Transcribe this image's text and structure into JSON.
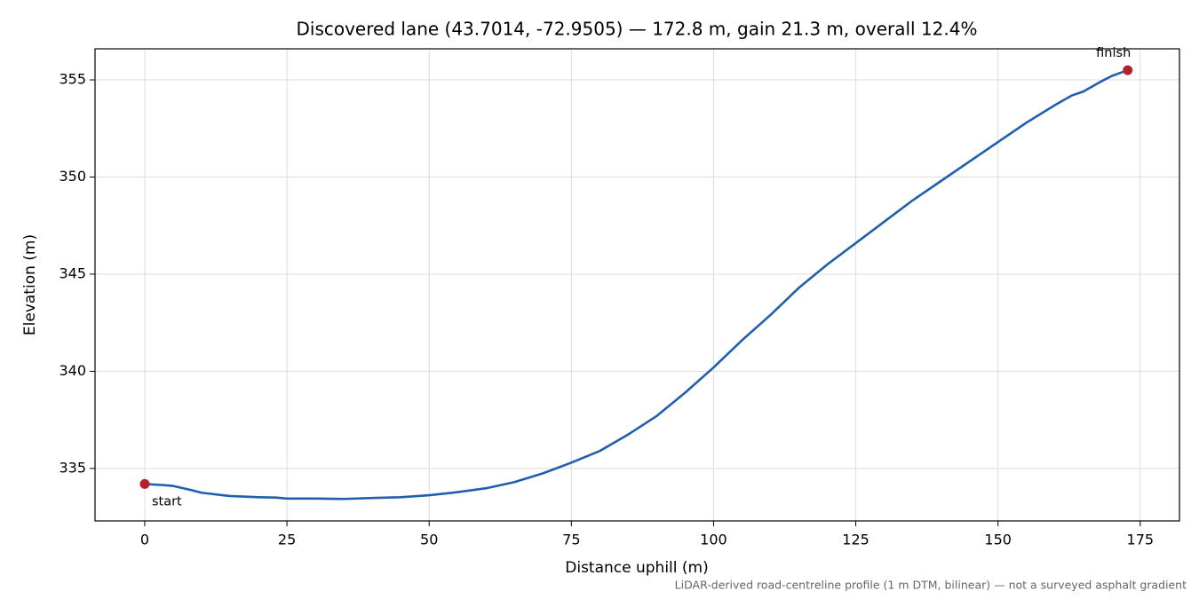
{
  "chart_data": {
    "type": "line",
    "title": "Discovered lane (43.7014, -72.9505) — 172.8 m, gain 21.3 m, overall 12.4%",
    "x_label": "Distance uphill (m)",
    "y_label": "Elevation (m)",
    "footnote": "LiDAR-derived road-centreline profile (1 m DTM, bilinear) — not a surveyed asphalt gradient",
    "x": [
      0,
      3,
      5,
      8,
      10,
      15,
      20,
      23,
      25,
      30,
      35,
      40,
      45,
      50,
      55,
      60,
      65,
      70,
      75,
      80,
      85,
      90,
      95,
      100,
      105,
      110,
      115,
      120,
      125,
      130,
      135,
      140,
      145,
      150,
      155,
      160,
      163,
      165,
      168,
      170,
      172.8
    ],
    "series": [
      {
        "name": "Elevation",
        "color": "#1f5fad",
        "values": [
          334.2,
          334.15,
          334.1,
          333.9,
          333.75,
          333.58,
          333.52,
          333.5,
          333.45,
          333.45,
          333.43,
          333.48,
          333.52,
          333.62,
          333.78,
          333.98,
          334.3,
          334.75,
          335.3,
          335.9,
          336.75,
          337.7,
          338.9,
          340.2,
          341.6,
          342.9,
          344.3,
          345.5,
          346.6,
          347.7,
          348.8,
          349.8,
          350.8,
          351.8,
          352.8,
          353.7,
          354.2,
          354.4,
          354.9,
          355.2,
          355.5
        ]
      }
    ],
    "markers": [
      {
        "label": "start",
        "x": 0,
        "y": 334.2,
        "color": "#b5202e"
      },
      {
        "label": "finish",
        "x": 172.8,
        "y": 355.5,
        "color": "#b5202e"
      }
    ],
    "xlim": [
      -8.74,
      181.9
    ],
    "ylim": [
      332.3,
      356.6
    ],
    "xticks": [
      0,
      25,
      50,
      75,
      100,
      125,
      150,
      175
    ],
    "yticks": [
      335,
      340,
      345,
      350,
      355
    ],
    "grid": true
  }
}
